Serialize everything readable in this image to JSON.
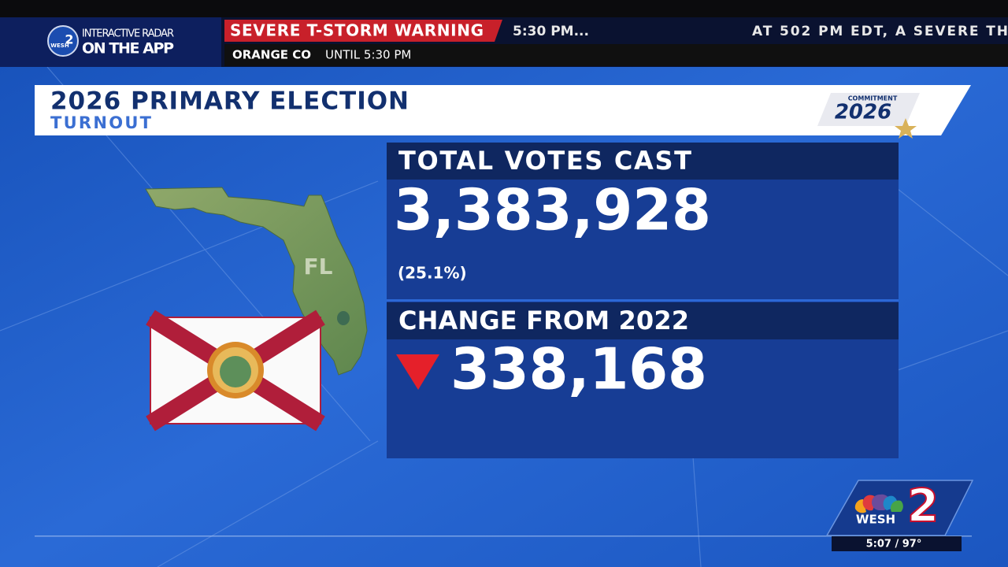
{
  "header": {
    "promo_line1": "INTERACTIVE RADAR",
    "promo_line2": "ON THE APP",
    "logo_text": "WESH",
    "logo_number": "2"
  },
  "ticker": {
    "alert": "SEVERE T-STORM WARNING",
    "crawl_left": "5:30 PM...",
    "crawl_right": "AT 502 PM EDT, A SEVERE TH",
    "county": "ORANGE CO",
    "until": "UNTIL 5:30 PM"
  },
  "graphic": {
    "title": "2026 PRIMARY ELECTION",
    "subtitle": "TURNOUT",
    "badge_top": "COMMITMENT",
    "badge_year": "2026",
    "map_label": "FL",
    "stats": [
      {
        "label": "TOTAL VOTES CAST",
        "value": "3,383,928",
        "note": "(25.1%)"
      },
      {
        "label": "CHANGE FROM 2022",
        "value": "338,168"
      }
    ]
  },
  "footer": {
    "station": "WESH",
    "channel": "2",
    "time_temp": "5:07 / 97°"
  }
}
